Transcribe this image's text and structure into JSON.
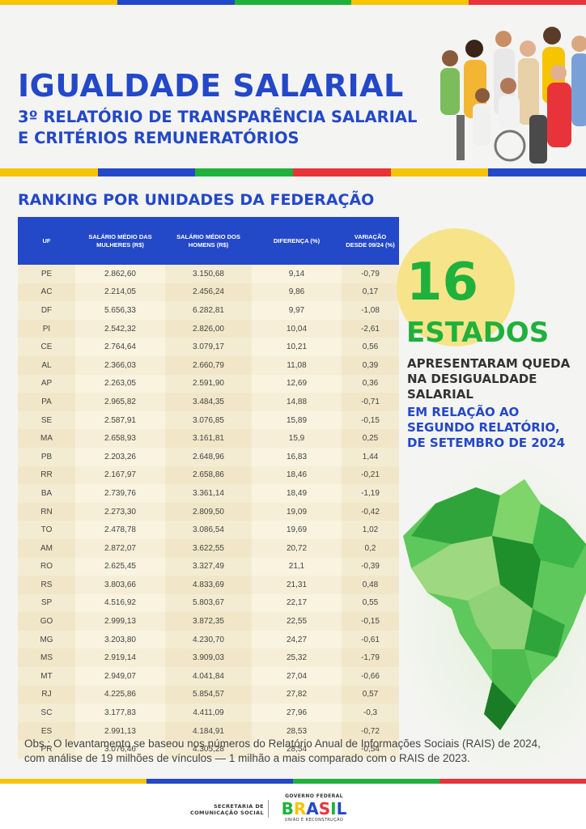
{
  "colors": {
    "blue": "#2348c8",
    "green": "#1fb13b",
    "yellow": "#f7c400",
    "red": "#e8333a",
    "cream": "#f4ecd2"
  },
  "header": {
    "title": "IGUALDADE SALARIAL",
    "subtitle_line1": "3º RELATÓRIO DE TRANSPARÊNCIA SALARIAL",
    "subtitle_line2": "E CRITÉRIOS REMUNERATÓRIOS"
  },
  "section_title": "RANKING POR UNIDADES DA FEDERAÇÃO",
  "table": {
    "headers": [
      "UF",
      "SALÁRIO MÉDIO DAS MULHERES (R$)",
      "SALÁRIO MÉDIO DOS HOMENS (R$)",
      "DIFERENÇA (%)",
      "VARIAÇÃO DESDE 09/24 (%)"
    ],
    "rows": [
      [
        "PE",
        "2.862,60",
        "3.150,68",
        "9,14",
        "-0,79"
      ],
      [
        "AC",
        "2.214,05",
        "2.456,24",
        "9,86",
        "0,17"
      ],
      [
        "DF",
        "5.656,33",
        "6.282,81",
        "9,97",
        "-1,08"
      ],
      [
        "PI",
        "2.542,32",
        "2.826,00",
        "10,04",
        "-2,61"
      ],
      [
        "CE",
        "2.764,64",
        "3.079,17",
        "10,21",
        "0,56"
      ],
      [
        "AL",
        "2.366,03",
        "2.660,79",
        "11,08",
        "0,39"
      ],
      [
        "AP",
        "2.263,05",
        "2.591,90",
        "12,69",
        "0,36"
      ],
      [
        "PA",
        "2.965,82",
        "3.484,35",
        "14,88",
        "-0,71"
      ],
      [
        "SE",
        "2.587,91",
        "3.076,85",
        "15,89",
        "-0,15"
      ],
      [
        "MA",
        "2.658,93",
        "3.161,81",
        "15,9",
        "0,25"
      ],
      [
        "PB",
        "2.203,26",
        "2.648,96",
        "16,83",
        "1,44"
      ],
      [
        "RR",
        "2.167,97",
        "2.658,86",
        "18,46",
        "-0,21"
      ],
      [
        "BA",
        "2.739,76",
        "3.361,14",
        "18,49",
        "-1,19"
      ],
      [
        "RN",
        "2.273,30",
        "2.809,50",
        "19,09",
        "-0,42"
      ],
      [
        "TO",
        "2.478,78",
        "3.086,54",
        "19,69",
        "1,02"
      ],
      [
        "AM",
        "2.872,07",
        "3.622,55",
        "20,72",
        "0,2"
      ],
      [
        "RO",
        "2.625,45",
        "3.327,49",
        "21,1",
        "-0,39"
      ],
      [
        "RS",
        "3.803,66",
        "4.833,69",
        "21,31",
        "0,48"
      ],
      [
        "SP",
        "4.516,92",
        "5.803,67",
        "22,17",
        "0,55"
      ],
      [
        "GO",
        "2.999,13",
        "3.872,35",
        "22,55",
        "-0,15"
      ],
      [
        "MG",
        "3.203,80",
        "4.230,70",
        "24,27",
        "-0,61"
      ],
      [
        "MS",
        "2.919,14",
        "3.909,03",
        "25,32",
        "-1,79"
      ],
      [
        "MT",
        "2.949,07",
        "4.041,84",
        "27,04",
        "-0,66"
      ],
      [
        "RJ",
        "4.225,86",
        "5.854,57",
        "27,82",
        "0,57"
      ],
      [
        "SC",
        "3.177,83",
        "4.411,09",
        "27,96",
        "-0,3"
      ],
      [
        "ES",
        "2.991,13",
        "4.184,91",
        "28,53",
        "-0,72"
      ],
      [
        "PR",
        "3.076,46",
        "4.305,28",
        "28,54",
        "-0,54"
      ]
    ]
  },
  "highlight": {
    "number": "16",
    "word": "ESTADOS",
    "text_dark": "APRESENTARAM QUEDA NA DESIGUALDADE SALARIAL",
    "text_blue": "EM RELAÇÃO AO SEGUNDO RELATÓRIO, DE SETEMBRO DE 2024"
  },
  "obs": "Obs.: O levantamento se baseou nos números do Relatório Anual de Informações Sociais (RAIS) de 2024, com análise de 19 milhões de vínculos — 1 milhão a mais comparado com o RAIS de 2023.",
  "footer": {
    "secom_line1": "SECRETARIA DE",
    "secom_line2": "COMUNICAÇÃO SOCIAL",
    "gov_top": "GOVERNO FEDERAL",
    "brasil": "BRASIL",
    "gov_bottom": "UNIÃO E RECONSTRUÇÃO"
  }
}
